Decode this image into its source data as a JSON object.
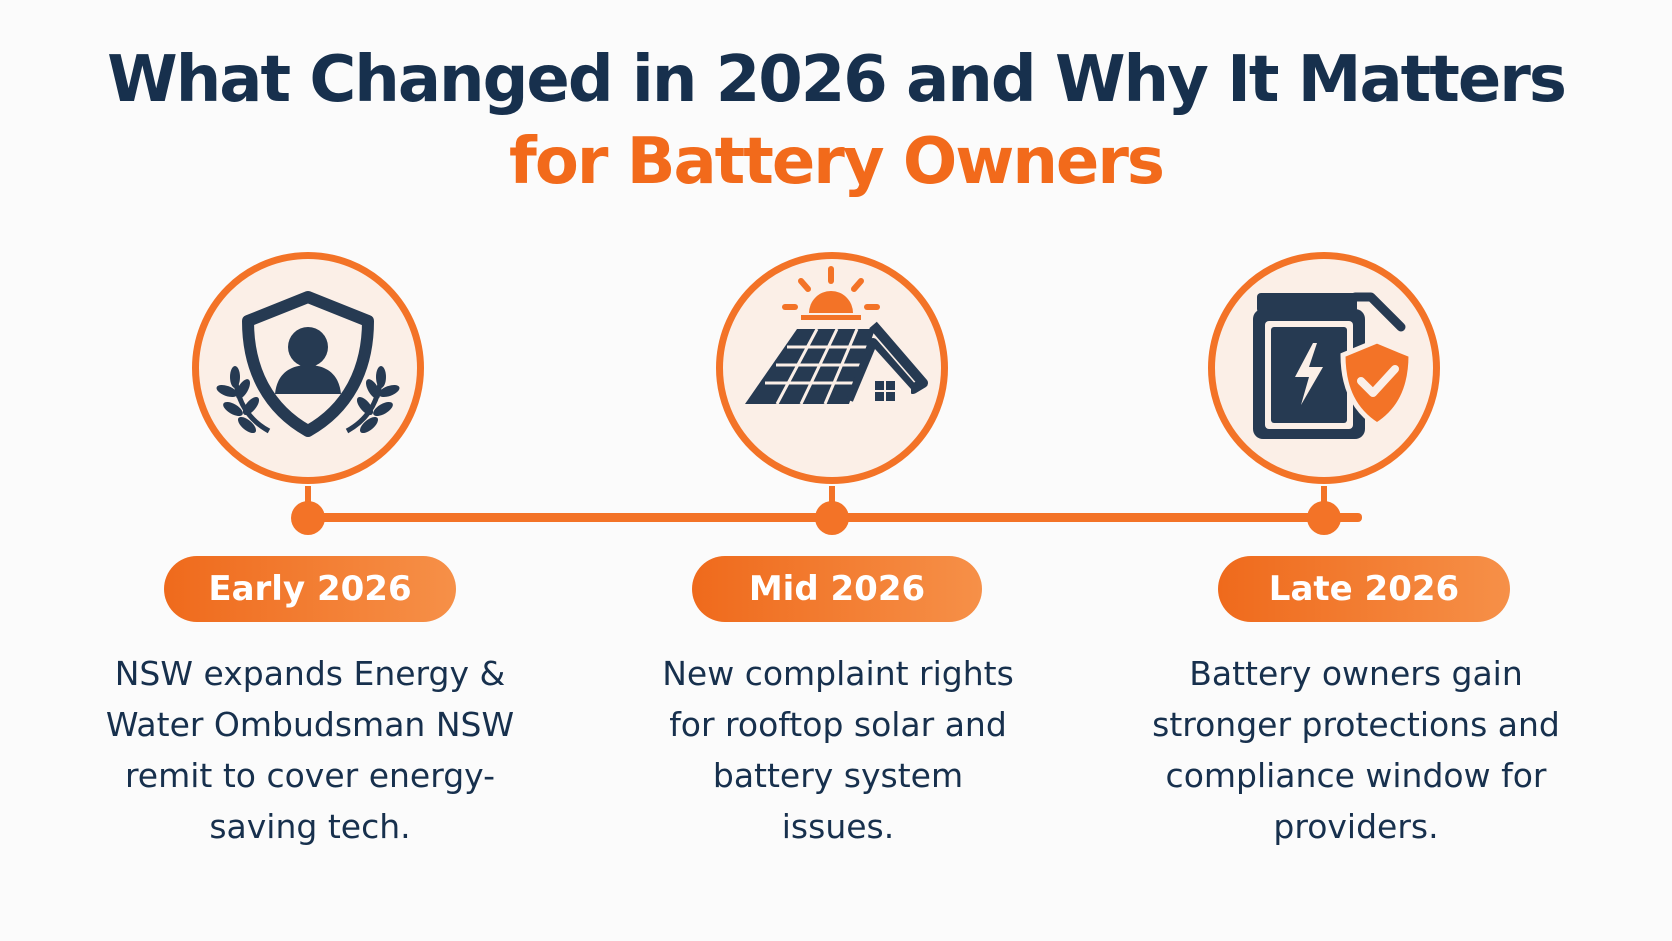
{
  "title": {
    "line1": "What Changed in 2026 and Why It Matters",
    "line2": "for Battery Owners"
  },
  "colors": {
    "navy": "#17304d",
    "orange": "#f37327",
    "circle_fill": "#fbefe7"
  },
  "milestones": [
    {
      "icon": "shield-person-laurel-icon",
      "label": "Early 2026",
      "description": "NSW expands Energy & Water Ombudsman NSW remit to cover energy-saving tech."
    },
    {
      "icon": "solar-roof-house-icon",
      "label": "Mid 2026",
      "description": "New complaint rights for rooftop solar and battery system issues."
    },
    {
      "icon": "battery-shield-check-icon",
      "label": "Late 2026",
      "description": "Battery owners gain stronger protections and compliance window for providers."
    }
  ]
}
